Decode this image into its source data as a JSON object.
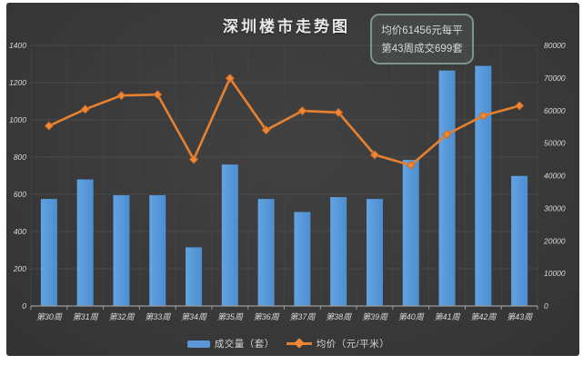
{
  "title": "深圳楼市走势图",
  "annotation": {
    "line1": "均价61456元每平",
    "line2": "第43周成交699套"
  },
  "legend": {
    "bar_label": "成交量（套）",
    "line_label": "均价（元/平米）"
  },
  "colors": {
    "bar": "#5b97d8",
    "bar_gradient_light": "#63a3e2",
    "bar_gradient_dark": "#4c8ed0",
    "line": "#e8812f",
    "marker_fill": "#ef8836",
    "marker_edge": "#c96a26",
    "background": "#3a3a3a",
    "grid_h": "#4a4a4a",
    "grid_v": "#424242",
    "axis": "#9b9b9b",
    "text": "#d9d9d9"
  },
  "chart_data": {
    "type": "combo-bar-line",
    "title": "深圳楼市走势图",
    "categories": [
      "第30周",
      "第31周",
      "第32周",
      "第33周",
      "第34周",
      "第35周",
      "第36周",
      "第37周",
      "第38周",
      "第39周",
      "第40周",
      "第41周",
      "第42周",
      "第43周"
    ],
    "series": [
      {
        "name": "成交量（套）",
        "type": "bar",
        "axis": "left",
        "color": "#5b97d8",
        "values": [
          575,
          680,
          595,
          595,
          315,
          760,
          575,
          505,
          585,
          575,
          785,
          1265,
          1290,
          699
        ]
      },
      {
        "name": "均价（元/平米）",
        "type": "line",
        "axis": "right",
        "color": "#e8812f",
        "values": [
          55300,
          60400,
          64600,
          64900,
          45000,
          69900,
          54000,
          59900,
          59400,
          46400,
          43200,
          52700,
          58400,
          61456
        ]
      }
    ],
    "left_axis": {
      "min": 0,
      "max": 1400,
      "step": 200,
      "ticks": [
        "0",
        "200",
        "400",
        "600",
        "800",
        "1000",
        "1200",
        "1400"
      ]
    },
    "right_axis": {
      "min": 0,
      "max": 80000,
      "step": 10000,
      "ticks": [
        "0",
        "10000",
        "20000",
        "30000",
        "40000",
        "50000",
        "60000",
        "70000",
        "80000"
      ]
    },
    "grid": true,
    "legend_position": "bottom",
    "annotations": [
      "均价61456元每平",
      "第43周成交699套"
    ]
  }
}
